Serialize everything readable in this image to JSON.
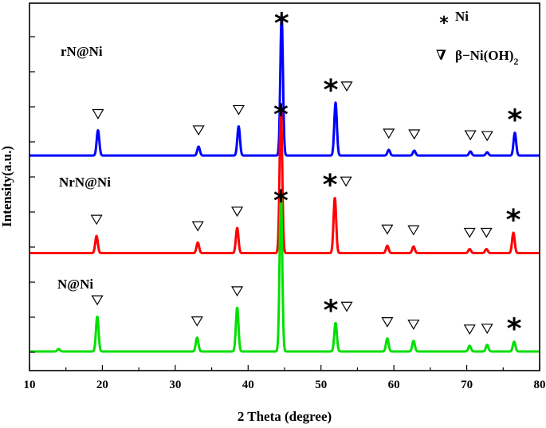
{
  "chart_data": {
    "type": "line",
    "xlabel": "2 Theta (degree)",
    "ylabel": "Intensity(a.u.)",
    "xlim": [
      10,
      80
    ],
    "xticks": [
      10,
      20,
      30,
      40,
      50,
      60,
      70,
      80
    ],
    "xtick_labels": [
      "10",
      "20",
      "30",
      "40",
      "50",
      "60",
      "70",
      "80"
    ],
    "y_ticks_labeled": false,
    "grid": false,
    "legend": {
      "placement": "top-right",
      "entries": [
        {
          "symbol": "*",
          "label": "Ni",
          "marker": "star"
        },
        {
          "symbol": "∇",
          "label": "β−Ni(OH)",
          "subscript": "2",
          "marker": "triangle"
        }
      ]
    },
    "series": [
      {
        "name": "rN@Ni",
        "color": "#0000ff",
        "offset": 2.4,
        "baseline": 0.03,
        "peaks": [
          [
            19.4,
            0.31
          ],
          [
            33.2,
            0.11
          ],
          [
            38.7,
            0.36
          ],
          [
            44.6,
            1.72
          ],
          [
            52.0,
            0.65
          ],
          [
            59.3,
            0.07
          ],
          [
            62.8,
            0.06
          ],
          [
            70.5,
            0.05
          ],
          [
            72.8,
            0.04
          ],
          [
            76.6,
            0.28
          ]
        ],
        "triangle_markers": [
          19.4,
          33.2,
          38.7,
          52.0,
          59.3,
          62.8,
          70.5,
          72.8
        ],
        "star_markers": [
          44.6,
          52.0,
          76.6
        ]
      },
      {
        "name": "NrN@Ni",
        "color": "#ff0000",
        "offset": 1.2,
        "baseline": 0.03,
        "peaks": [
          [
            19.2,
            0.21
          ],
          [
            33.1,
            0.13
          ],
          [
            38.5,
            0.31
          ],
          [
            44.5,
            1.8
          ],
          [
            51.9,
            0.68
          ],
          [
            59.1,
            0.09
          ],
          [
            62.7,
            0.08
          ],
          [
            70.4,
            0.05
          ],
          [
            72.7,
            0.05
          ],
          [
            76.4,
            0.25
          ]
        ],
        "triangle_markers": [
          19.2,
          33.1,
          38.5,
          51.9,
          59.1,
          62.7,
          70.4,
          72.7
        ],
        "star_markers": [
          44.5,
          51.9,
          76.4
        ]
      },
      {
        "name": "N@Ni",
        "color": "#00e000",
        "offset": 0.0,
        "baseline": 0.02,
        "peaks": [
          [
            14.0,
            0.03
          ],
          [
            19.3,
            0.43
          ],
          [
            33.0,
            0.17
          ],
          [
            38.5,
            0.54
          ],
          [
            44.5,
            1.95
          ],
          [
            52.0,
            0.35
          ],
          [
            59.1,
            0.16
          ],
          [
            62.7,
            0.13
          ],
          [
            70.4,
            0.07
          ],
          [
            72.8,
            0.08
          ],
          [
            76.5,
            0.12
          ]
        ],
        "triangle_markers": [
          19.3,
          33.0,
          38.5,
          52.0,
          59.1,
          62.7,
          70.4,
          72.8
        ],
        "star_markers": [
          44.5,
          52.0,
          76.5
        ]
      }
    ]
  }
}
